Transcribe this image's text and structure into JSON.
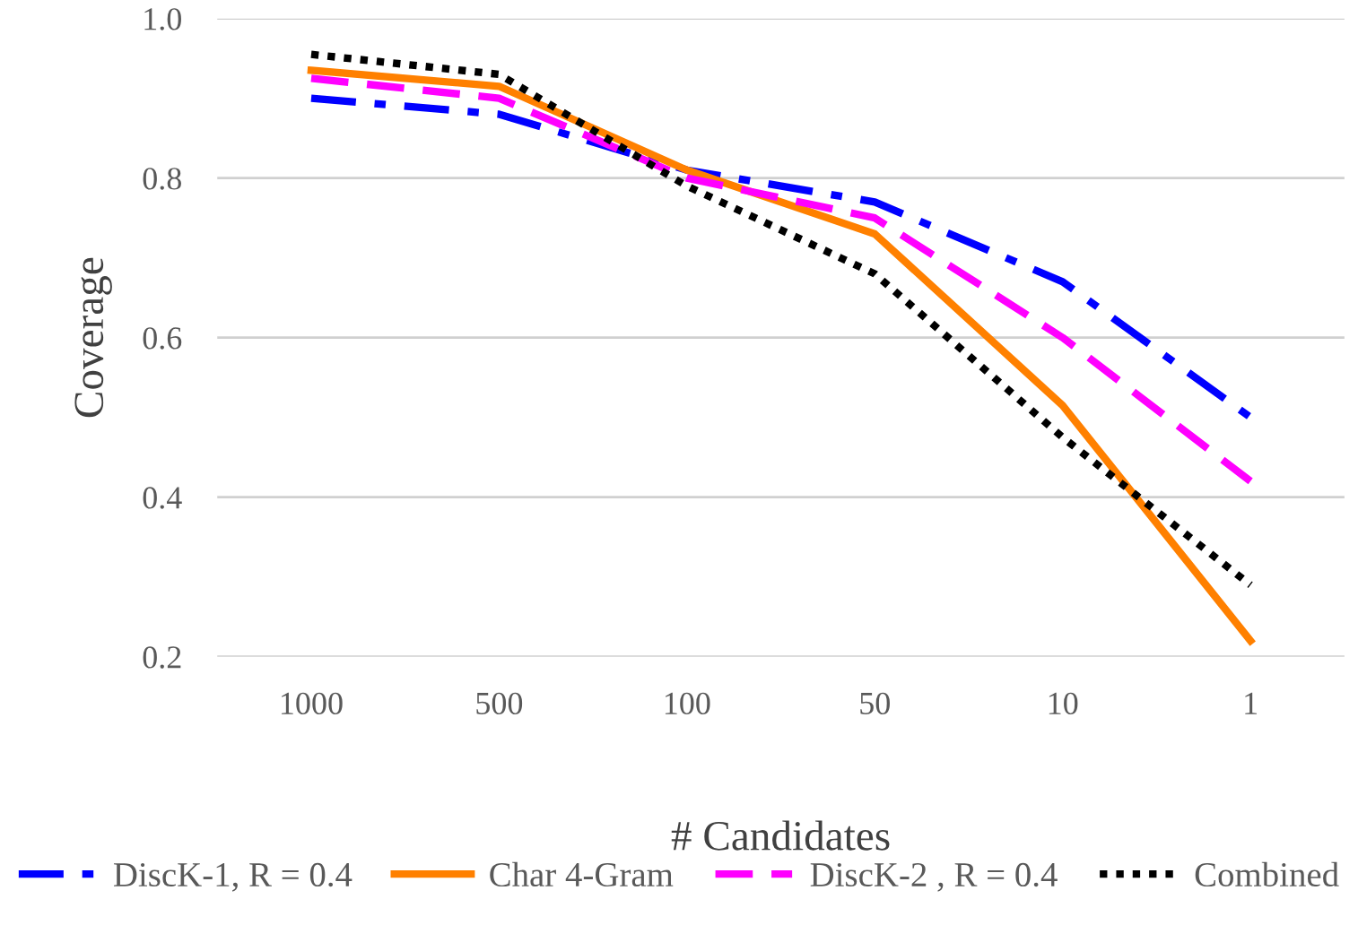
{
  "chart_data": {
    "type": "line",
    "xlabel": "# Candidates",
    "ylabel": "Coverage",
    "categories": [
      "1000",
      "500",
      "100",
      "50",
      "10",
      "1"
    ],
    "ylim": [
      0.2,
      1.0
    ],
    "yticks": [
      {
        "value": 0.2,
        "label": "0.2"
      },
      {
        "value": 0.4,
        "label": "0.4"
      },
      {
        "value": 0.6,
        "label": "0.6"
      },
      {
        "value": 0.8,
        "label": "0.8"
      },
      {
        "value": 1.0,
        "label": "1.0"
      }
    ],
    "grid": "y",
    "legend": "bottom",
    "marker": "none",
    "series": [
      {
        "name": "DiscK-1, R = 0.4",
        "color": "#0000ff",
        "line_style": "dashdot",
        "values": [
          0.9,
          0.88,
          0.81,
          0.77,
          0.67,
          0.5
        ]
      },
      {
        "name": "Char 4-Gram",
        "color": "#ff8000",
        "line_style": "solid",
        "values": [
          0.935,
          0.915,
          0.81,
          0.73,
          0.515,
          0.22
        ]
      },
      {
        "name": "DiscK-2 , R = 0.4",
        "color": "#ff00ff",
        "line_style": "dashed",
        "values": [
          0.925,
          0.9,
          0.8,
          0.75,
          0.6,
          0.42
        ]
      },
      {
        "name": "Combined",
        "color": "#000000",
        "line_style": "dotted",
        "values": [
          0.955,
          0.93,
          0.79,
          0.68,
          0.475,
          0.29
        ]
      }
    ]
  }
}
